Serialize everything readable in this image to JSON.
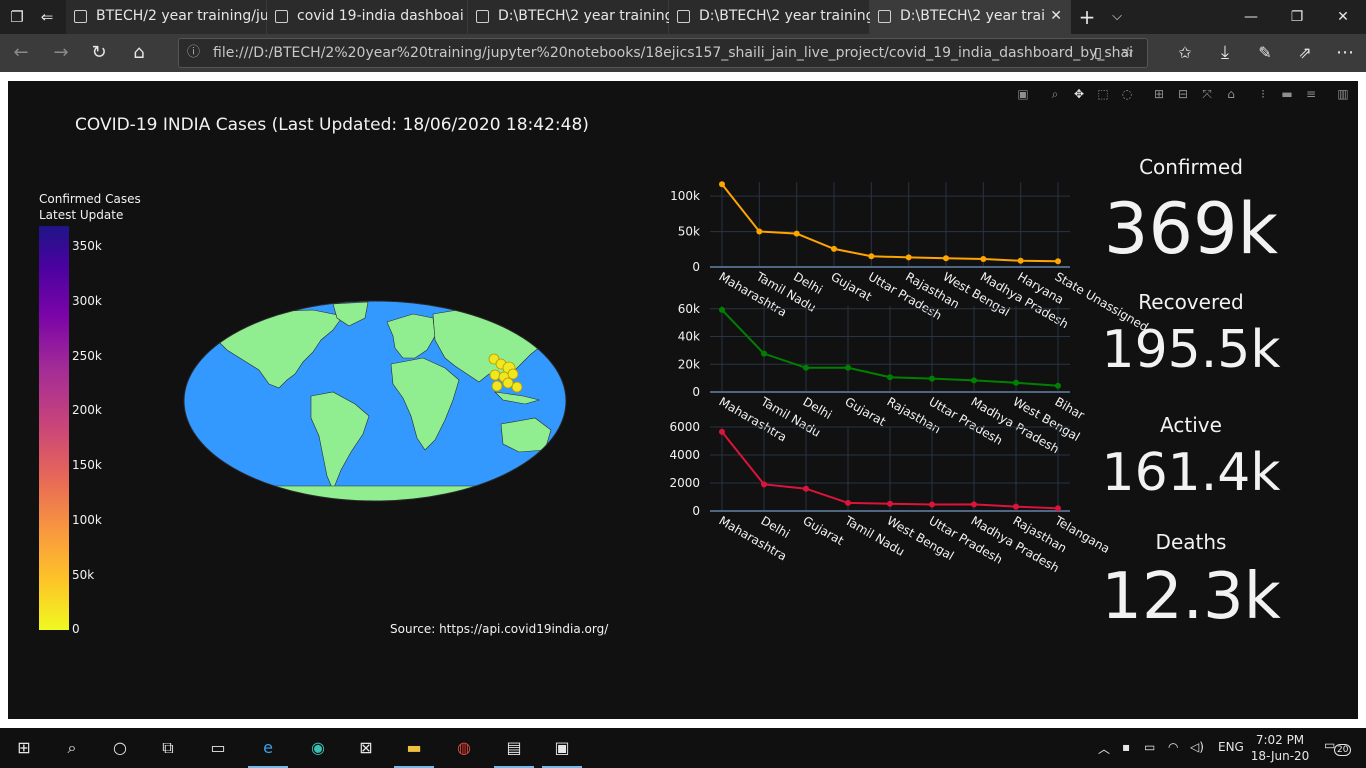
{
  "browser": {
    "tabs": [
      {
        "label": "BTECH/2 year training/ju",
        "active": false
      },
      {
        "label": "covid 19-india dashboai",
        "active": false
      },
      {
        "label": "D:\\BTECH\\2 year training",
        "active": false
      },
      {
        "label": "D:\\BTECH\\2 year training",
        "active": false
      },
      {
        "label": "D:\\BTECH\\2 year trai",
        "active": true
      }
    ],
    "url": "file:///D:/BTECH/2%20year%20training/jupyter%20notebooks/18ejics157_shaili_jain_live_project/covid_19_india_dashboard_by_shai"
  },
  "dashboard": {
    "title": "COVID-19 INDIA Cases (Last Updated: 18/06/2020 18:42:48)",
    "colorbar": {
      "title_line1": "Confirmed Cases",
      "title_line2": "Latest Update",
      "ticks": [
        "350k",
        "300k",
        "250k",
        "200k",
        "150k",
        "100k",
        "50k",
        "0"
      ]
    },
    "source": "Source: https://api.covid19india.org/",
    "indicators": [
      {
        "label": "Confirmed",
        "value": "369k"
      },
      {
        "label": "Recovered",
        "value": "195.5k"
      },
      {
        "label": "Active",
        "value": "161.4k"
      },
      {
        "label": "Deaths",
        "value": "12.3k"
      }
    ],
    "colors": {
      "confirmed": "#ffa500",
      "recovered": "#008000",
      "deaths": "#dc143c",
      "ocean": "#3399ff",
      "land": "#90ee90",
      "background": "#111111"
    }
  },
  "chart_data": [
    {
      "type": "line",
      "name": "confirmed-by-state",
      "categories": [
        "Maharashtra",
        "Tamil Nadu",
        "Delhi",
        "Gujarat",
        "Uttar Pradesh",
        "Rajasthan",
        "West Bengal",
        "Madhya Pradesh",
        "Haryana",
        "State Unassigned"
      ],
      "values": [
        116752,
        50193,
        47102,
        25601,
        15181,
        13542,
        12300,
        11244,
        8832,
        8190
      ],
      "yticks": [
        "0",
        "50k",
        "100k"
      ],
      "ylim": [
        0,
        120000
      ],
      "color": "#ffa500"
    },
    {
      "type": "line",
      "name": "recovered-by-state",
      "categories": [
        "Maharashtra",
        "Tamil Nadu",
        "Delhi",
        "Gujarat",
        "Rajasthan",
        "Uttar Pradesh",
        "Madhya Pradesh",
        "West Bengal",
        "Bihar"
      ],
      "values": [
        59166,
        27624,
        17457,
        17458,
        10663,
        9638,
        8395,
        6700,
        4500
      ],
      "yticks": [
        "0",
        "20k",
        "40k",
        "60k"
      ],
      "ylim": [
        0,
        62000
      ],
      "color": "#008000"
    },
    {
      "type": "line",
      "name": "deaths-by-state",
      "categories": [
        "Maharashtra",
        "Delhi",
        "Gujarat",
        "Tamil Nadu",
        "West Bengal",
        "Uttar Pradesh",
        "Madhya Pradesh",
        "Rajasthan",
        "Telangana"
      ],
      "values": [
        5651,
        1904,
        1591,
        576,
        518,
        465,
        476,
        313,
        192
      ],
      "yticks": [
        "0",
        "2000",
        "4000",
        "6000"
      ],
      "ylim": [
        0,
        6000
      ],
      "color": "#dc143c"
    }
  ],
  "taskbar": {
    "language": "ENG",
    "time": "7:02 PM",
    "date": "18-Jun-20",
    "notifications": "20"
  }
}
